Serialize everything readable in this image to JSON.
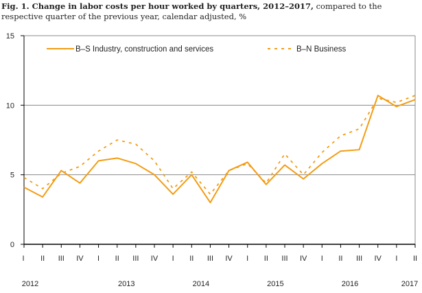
{
  "title_bold": "Fig. 1. Change in labor costs per hour worked by quarters, 2012–2017,",
  "title_rest": " compared to the respective quarter of the previous year, calendar adjusted, %",
  "chart_data": {
    "type": "line",
    "title": "Fig. 1. Change in labor costs per hour worked by quarters, 2012–2017, compared to the respective quarter of the previous year, calendar adjusted, %",
    "ylim": [
      0,
      15
    ],
    "yticks": [
      "0",
      "5",
      "10",
      "15"
    ],
    "grid": true,
    "legend_placement": "top",
    "x": [
      "I",
      "II",
      "III",
      "IV",
      "I",
      "II",
      "III",
      "IV",
      "I",
      "II",
      "III",
      "IV",
      "I",
      "II",
      "III",
      "IV",
      "I",
      "II",
      "III",
      "IV",
      "I",
      "II"
    ],
    "years": [
      {
        "label": "2012",
        "start": 0
      },
      {
        "label": "2013",
        "start": 4
      },
      {
        "label": "2014",
        "start": 8
      },
      {
        "label": "2015",
        "start": 12
      },
      {
        "label": "2016",
        "start": 16
      },
      {
        "label": "2017",
        "start": 20
      }
    ],
    "series": [
      {
        "name": "B–S Industry, construction and services",
        "style": "solid",
        "color": "#f39c12",
        "values": [
          4.1,
          3.4,
          5.3,
          4.4,
          6.0,
          6.2,
          5.8,
          5.0,
          3.6,
          5.0,
          3.0,
          5.3,
          5.9,
          4.3,
          5.7,
          4.7,
          5.8,
          6.7,
          6.8,
          10.7,
          9.9,
          10.4
        ]
      },
      {
        "name": "B–N Business",
        "style": "dashed",
        "color": "#f39c12",
        "values": [
          4.8,
          4.0,
          5.1,
          5.6,
          6.7,
          7.5,
          7.2,
          6.0,
          4.0,
          5.2,
          3.6,
          5.3,
          5.8,
          4.4,
          6.5,
          5.0,
          6.6,
          7.8,
          8.3,
          10.5,
          10.2,
          10.7
        ]
      }
    ]
  }
}
